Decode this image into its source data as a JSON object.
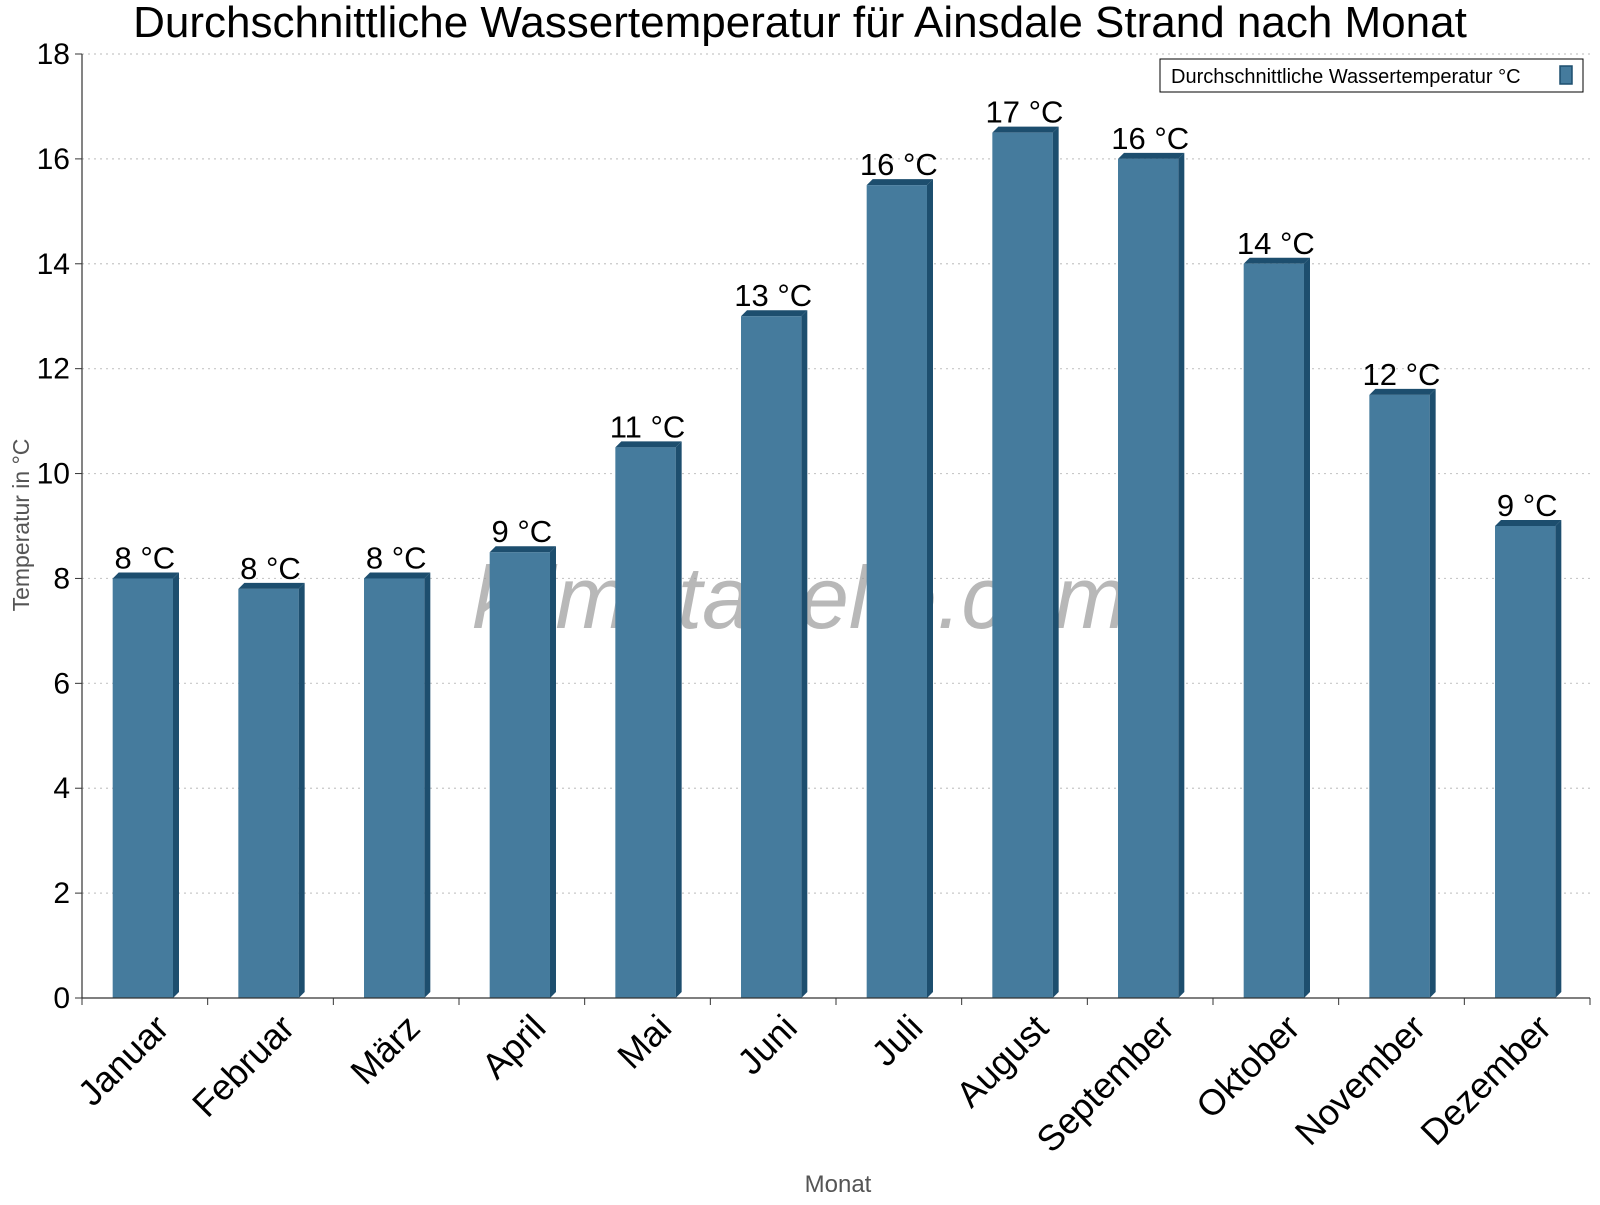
{
  "chart_data": {
    "type": "bar",
    "title": "Durchschnittliche Wassertemperatur für Ainsdale Strand nach Monat",
    "xlabel": "Monat",
    "ylabel": "Temperatur in °C",
    "categories": [
      "Januar",
      "Februar",
      "März",
      "April",
      "Mai",
      "Juni",
      "Juli",
      "August",
      "September",
      "Oktober",
      "November",
      "Dezember"
    ],
    "series": [
      {
        "name": "Durchschnittliche Wassertemperatur °C",
        "values": [
          8.0,
          7.8,
          8.0,
          8.5,
          10.5,
          13.0,
          15.5,
          16.5,
          16.0,
          14.0,
          11.5,
          9.0
        ],
        "labels": [
          "8 °C",
          "8 °C",
          "8 °C",
          "9 °C",
          "11 °C",
          "13 °C",
          "16 °C",
          "17 °C",
          "16 °C",
          "14 °C",
          "12 °C",
          "9 °C"
        ]
      }
    ],
    "ylim": [
      0,
      18
    ],
    "yticks": [
      "0",
      "2",
      "4",
      "6",
      "8",
      "10",
      "12",
      "14",
      "16",
      "18"
    ],
    "grid": true,
    "legend_position": "top-right",
    "watermark": "klimatabelle.com",
    "colors": {
      "bar": "#457b9d",
      "bar_dark": "#1d4e6e",
      "grid": "#c8c8c8",
      "axis": "#333333"
    }
  }
}
